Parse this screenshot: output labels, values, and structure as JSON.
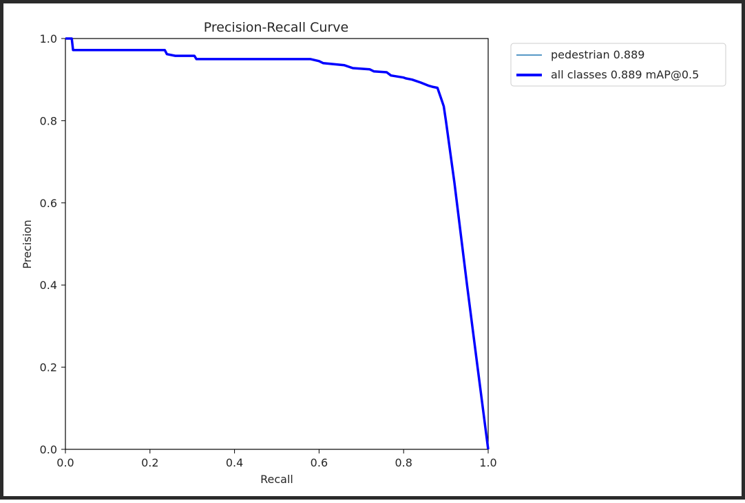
{
  "chart_data": {
    "type": "line",
    "title": "Precision-Recall Curve",
    "xlabel": "Recall",
    "ylabel": "Precision",
    "xlim": [
      0.0,
      1.0
    ],
    "ylim": [
      0.0,
      1.0
    ],
    "xticks": [
      "0.0",
      "0.2",
      "0.4",
      "0.6",
      "0.8",
      "1.0"
    ],
    "yticks": [
      "0.0",
      "0.2",
      "0.4",
      "0.6",
      "0.8",
      "1.0"
    ],
    "grid": false,
    "legend_position": "outside-top-right",
    "series": [
      {
        "name": "pedestrian 0.889",
        "color": "#1f77b4",
        "line": "thin",
        "x": [
          0.0,
          0.015,
          0.018,
          0.235,
          0.24,
          0.26,
          0.305,
          0.31,
          0.58,
          0.6,
          0.61,
          0.66,
          0.68,
          0.72,
          0.73,
          0.76,
          0.77,
          0.8,
          0.805,
          0.82,
          0.84,
          0.86,
          0.87,
          0.88,
          0.885,
          0.89,
          0.895,
          0.9,
          0.92,
          0.95,
          0.975,
          1.0
        ],
        "y": [
          1.0,
          1.0,
          0.972,
          0.972,
          0.962,
          0.958,
          0.958,
          0.95,
          0.95,
          0.945,
          0.94,
          0.935,
          0.928,
          0.925,
          0.92,
          0.918,
          0.91,
          0.905,
          0.903,
          0.9,
          0.893,
          0.885,
          0.882,
          0.88,
          0.865,
          0.85,
          0.835,
          0.8,
          0.65,
          0.4,
          0.2,
          0.0
        ]
      },
      {
        "name": "all classes 0.889 mAP@0.5",
        "color": "#0000ff",
        "line": "thick",
        "x": [
          0.0,
          0.015,
          0.018,
          0.235,
          0.24,
          0.26,
          0.305,
          0.31,
          0.58,
          0.6,
          0.61,
          0.66,
          0.68,
          0.72,
          0.73,
          0.76,
          0.77,
          0.8,
          0.805,
          0.82,
          0.84,
          0.86,
          0.87,
          0.88,
          0.885,
          0.89,
          0.895,
          0.9,
          0.92,
          0.95,
          0.975,
          1.0
        ],
        "y": [
          1.0,
          1.0,
          0.972,
          0.972,
          0.962,
          0.958,
          0.958,
          0.95,
          0.95,
          0.945,
          0.94,
          0.935,
          0.928,
          0.925,
          0.92,
          0.918,
          0.91,
          0.905,
          0.903,
          0.9,
          0.893,
          0.885,
          0.882,
          0.88,
          0.865,
          0.85,
          0.835,
          0.8,
          0.65,
          0.4,
          0.2,
          0.0
        ]
      }
    ]
  }
}
